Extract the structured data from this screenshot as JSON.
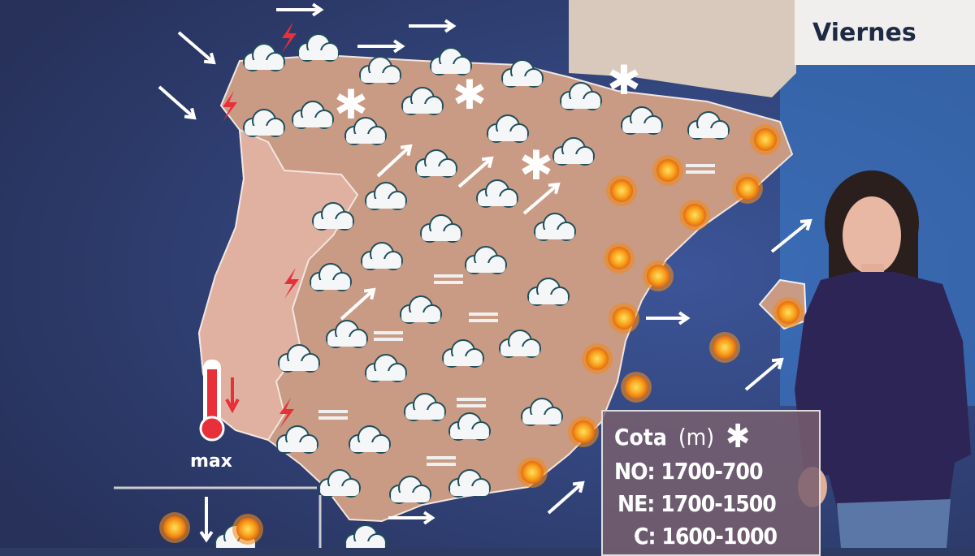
{
  "day_label": "Viernes",
  "temperature_label": "max",
  "temperature_icon": "thermometer-icon",
  "legend": {
    "title": "Cota",
    "unit": "(m)",
    "icon": "snowflake-icon",
    "rows": [
      "NO: 1700-700",
      "NE: 1700-1500",
      "C: 1600-1000"
    ]
  },
  "icon_types": [
    "rain-cloud-icon",
    "sun-icon",
    "snowflake-icon",
    "wind-arrow-icon",
    "lightning-icon",
    "fog-icon"
  ],
  "colors": {
    "sea": "#2d3b63",
    "land": "#c99a84",
    "sun": "#f5a020",
    "lightning": "#e8303a"
  }
}
